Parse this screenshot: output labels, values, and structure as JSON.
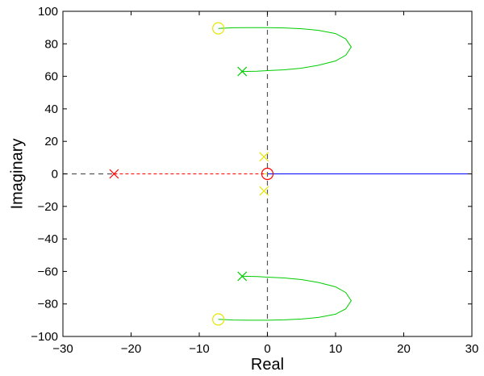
{
  "chart_data": {
    "type": "line",
    "title": "",
    "xlabel": "Real",
    "ylabel": "Imaginary",
    "xlim": [
      -30,
      30
    ],
    "ylim": [
      -100,
      100
    ],
    "x_ticks": [
      -30,
      -20,
      -10,
      0,
      10,
      20,
      30
    ],
    "y_ticks": [
      -100,
      -80,
      -60,
      -40,
      -20,
      0,
      20,
      40,
      60,
      80,
      100
    ],
    "x_tick_labels": [
      "−30",
      "−20",
      "−10",
      "0",
      "10",
      "20",
      "30"
    ],
    "y_tick_labels": [
      "−100",
      "−80",
      "−60",
      "−40",
      "−20",
      "0",
      "20",
      "40",
      "60",
      "80",
      "100"
    ],
    "grid": false,
    "colors": {
      "green": "#00cc00",
      "yellow": "#e6e600",
      "red": "#ff0000",
      "blue": "#0000ff",
      "reference": "#555555",
      "frame": "#000000"
    },
    "series": [
      {
        "color": "green",
        "style": "solid",
        "x": [
          -3.7,
          -1.5,
          0.0,
          2.5,
          5.0,
          7.5,
          10.0,
          11.5,
          12.3,
          11.5,
          10.0,
          7.5,
          5.0,
          2.5,
          0.0,
          -2.5,
          -5.0,
          -7.2
        ],
        "y": [
          63.0,
          63.2,
          63.5,
          64.0,
          65.0,
          66.8,
          69.5,
          73.0,
          78.0,
          83.0,
          86.3,
          88.3,
          89.3,
          89.8,
          90.0,
          90.0,
          89.9,
          89.5
        ]
      },
      {
        "color": "green",
        "style": "solid",
        "x": [
          -3.7,
          -1.5,
          0.0,
          2.5,
          5.0,
          7.5,
          10.0,
          11.5,
          12.3,
          11.5,
          10.0,
          7.5,
          5.0,
          2.5,
          0.0,
          -2.5,
          -5.0,
          -7.2
        ],
        "y": [
          -63.0,
          -63.2,
          -63.5,
          -64.0,
          -65.0,
          -66.8,
          -69.5,
          -73.0,
          -78.0,
          -83.0,
          -86.3,
          -88.3,
          -89.3,
          -89.8,
          -90.0,
          -90.0,
          -89.9,
          -89.5
        ]
      },
      {
        "color": "red",
        "style": "dashed",
        "x": [
          -22.5,
          0.0
        ],
        "y": [
          0,
          0
        ]
      },
      {
        "color": "yellow",
        "style": "solid",
        "x": [
          -0.5,
          0.0
        ],
        "y": [
          0,
          0
        ]
      },
      {
        "color": "blue",
        "style": "solid",
        "x": [
          0.0,
          30.0
        ],
        "y": [
          0,
          0
        ]
      }
    ],
    "reference_lines": [
      {
        "orientation": "horizontal",
        "value": 0,
        "x_range": [
          -30,
          -22.5
        ],
        "style": "dashed"
      },
      {
        "orientation": "vertical",
        "value": 0,
        "y_range": [
          -100,
          100
        ],
        "style": "dashed"
      }
    ],
    "poles": [
      {
        "x": -3.7,
        "y": 63.0,
        "color": "green"
      },
      {
        "x": -3.7,
        "y": -63.0,
        "color": "green"
      },
      {
        "x": -22.5,
        "y": 0,
        "color": "red"
      },
      {
        "x": -0.5,
        "y": 10.5,
        "color": "yellow"
      },
      {
        "x": -0.5,
        "y": -10.5,
        "color": "yellow"
      }
    ],
    "zeros": [
      {
        "x": -7.2,
        "y": 89.5,
        "color": "yellow"
      },
      {
        "x": -7.2,
        "y": -89.5,
        "color": "yellow"
      },
      {
        "x": 0.0,
        "y": 0.0,
        "color": "red"
      }
    ]
  }
}
